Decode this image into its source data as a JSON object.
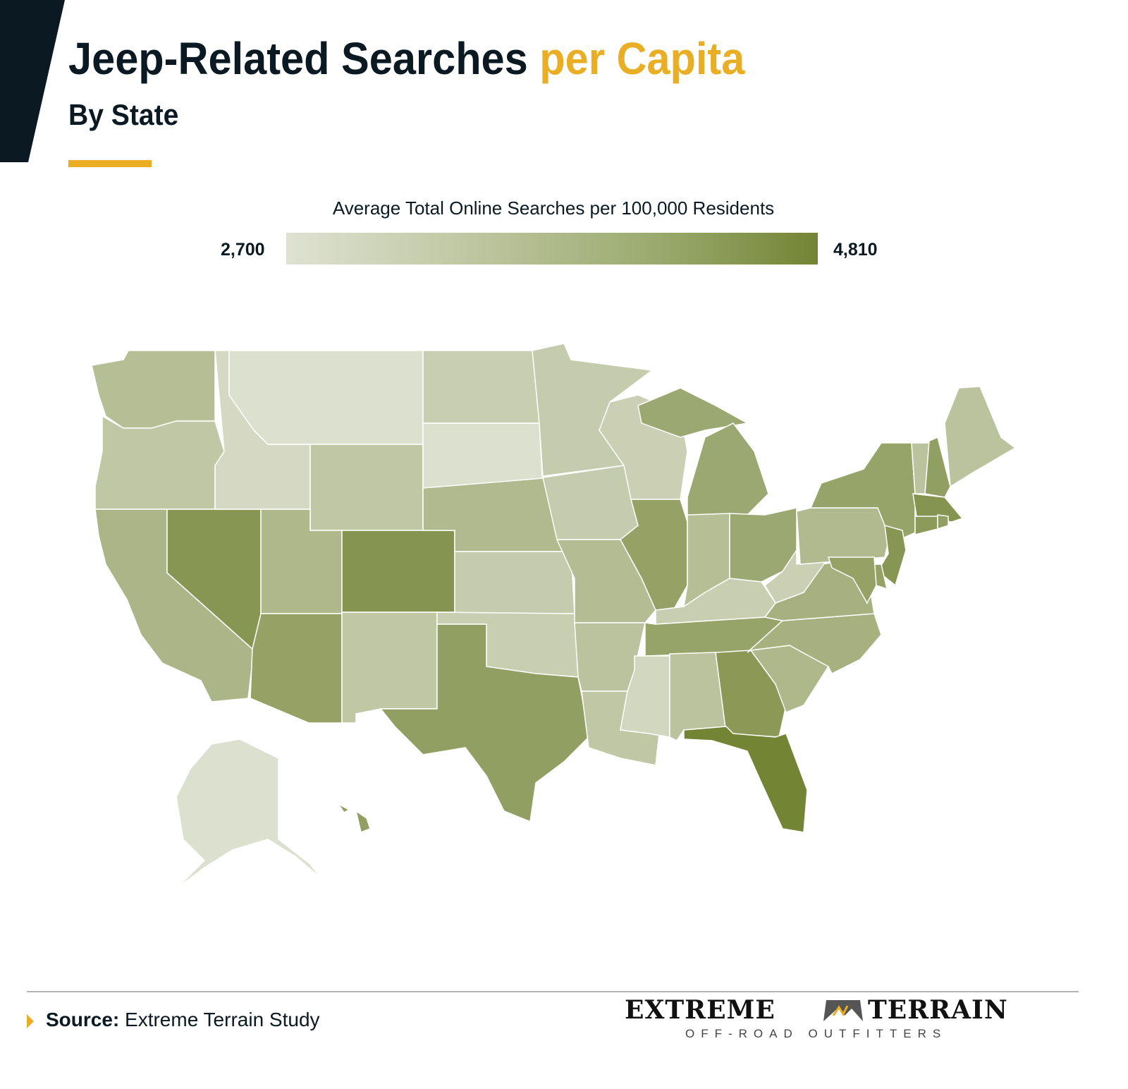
{
  "header": {
    "title_main": "Jeep-Related Searches",
    "title_accent": "per Capita",
    "subtitle": "By State"
  },
  "legend": {
    "title": "Average Total Online Searches per 100,000 Residents",
    "min_label": "2,700",
    "max_label": "4,810",
    "min": 2700,
    "max": 4810,
    "color_min": "#dfe2d2",
    "color_max": "#738434"
  },
  "colors": {
    "accent": "#e9ae24",
    "dark": "#0b1a22"
  },
  "map_data": {
    "type": "choropleth",
    "note_values_estimated_from_shading": true,
    "states": {
      "WA": 3500,
      "OR": 3300,
      "CA": 3700,
      "NV": 4400,
      "ID": 2900,
      "MT": 2750,
      "WY": 3300,
      "UT": 3650,
      "CO": 4450,
      "AZ": 4150,
      "NM": 3300,
      "ND": 3150,
      "SD": 2750,
      "NE": 3600,
      "KS": 3200,
      "OK": 3150,
      "TX": 4200,
      "MN": 3200,
      "IA": 3200,
      "MO": 3550,
      "AR": 3400,
      "LA": 3300,
      "WI": 3100,
      "IL": 4150,
      "MI": 4000,
      "IN": 3500,
      "OH": 4000,
      "KY": 3150,
      "TN": 4100,
      "MS": 2950,
      "AL": 3400,
      "GA": 4350,
      "FL": 4810,
      "SC": 3650,
      "NC": 3800,
      "VA": 3800,
      "WV": 3100,
      "PA": 3600,
      "NY": 4100,
      "VT": 3400,
      "NH": 4200,
      "ME": 3400,
      "MA": 4450,
      "CT": 4300,
      "RI": 4200,
      "NJ": 4400,
      "DE": 4150,
      "MD": 4150,
      "AK": 2750,
      "HI": 4200
    }
  },
  "footer": {
    "source_label": "Source:",
    "source_text": "Extreme Terrain Study",
    "logo_text": "EXTREME TERRAIN",
    "logo_tagline": "OFF-ROAD OUTFITTERS"
  }
}
